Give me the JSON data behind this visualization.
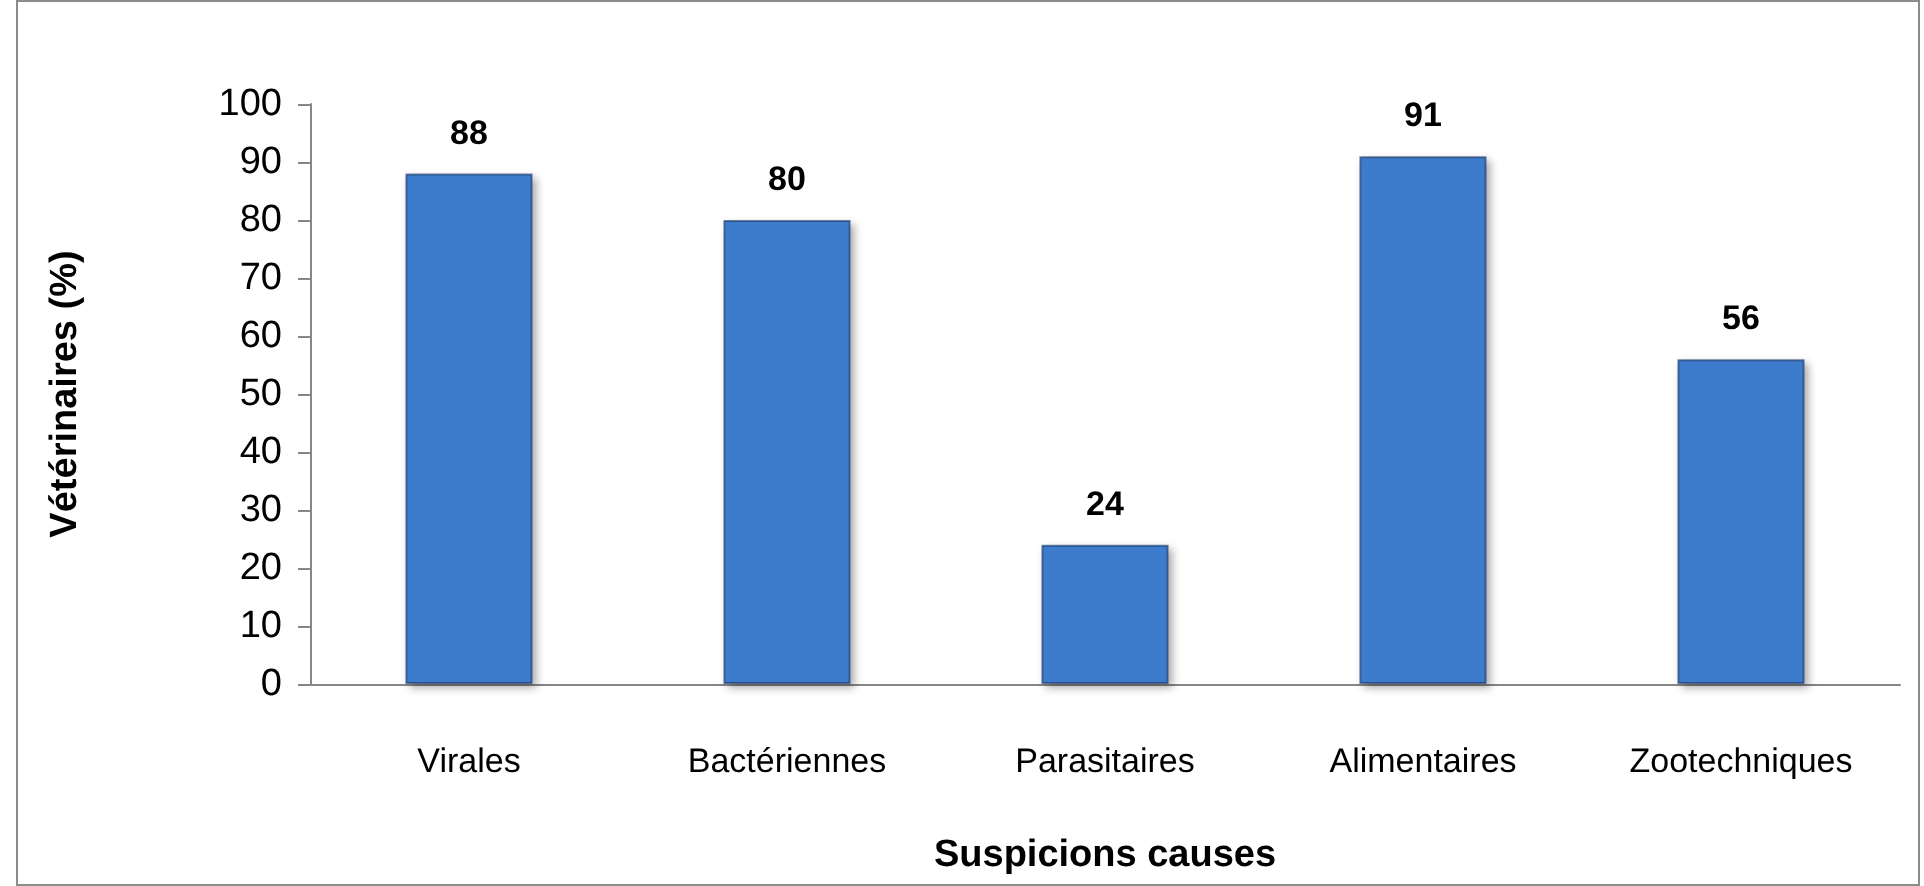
{
  "chart_data": {
    "type": "bar",
    "xlabel": "Suspicions causes",
    "ylabel": "Vétérinaires (%)",
    "categories": [
      "Virales",
      "Bactériennes",
      "Parasitaires",
      "Alimentaires",
      "Zootechniques"
    ],
    "values": [
      88,
      80,
      24,
      91,
      56
    ],
    "color": "#3c7ccc",
    "ylim": [
      0,
      100
    ],
    "yticks": [
      0,
      10,
      20,
      30,
      40,
      50,
      60,
      70,
      80,
      90,
      100
    ],
    "grid": false,
    "data_labels": true
  }
}
